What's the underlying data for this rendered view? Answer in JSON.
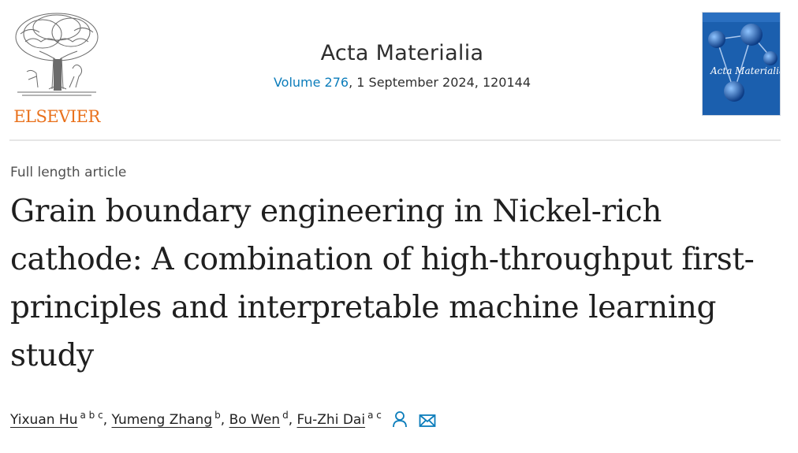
{
  "publisher": {
    "name": "ELSEVIER"
  },
  "journal": {
    "title": "Acta Materialia",
    "volume_label": "Volume 276",
    "issue_info": ", 1 September 2024, 120144"
  },
  "cover": {
    "title": "Acta Materialia"
  },
  "article": {
    "type": "Full length article",
    "title": "Grain boundary engineering in Nickel-rich cathode: A combination of high-throughput first-principles and interpretable machine learning study"
  },
  "authors": [
    {
      "name": "Yixuan Hu",
      "affiliations": "a b c",
      "sep": ", "
    },
    {
      "name": "Yumeng Zhang",
      "affiliations": "b",
      "sep": ", "
    },
    {
      "name": "Bo Wen",
      "affiliations": "d",
      "sep": ", "
    },
    {
      "name": "Fu-Zhi Dai",
      "affiliations": "a c",
      "sep": ""
    }
  ],
  "icons": {
    "corresponding_author": "person-icon",
    "email": "mail-icon"
  },
  "colors": {
    "publisher_orange": "#e9711c",
    "link_blue": "#0c7dbb",
    "cover_blue": "#1b5fae"
  }
}
